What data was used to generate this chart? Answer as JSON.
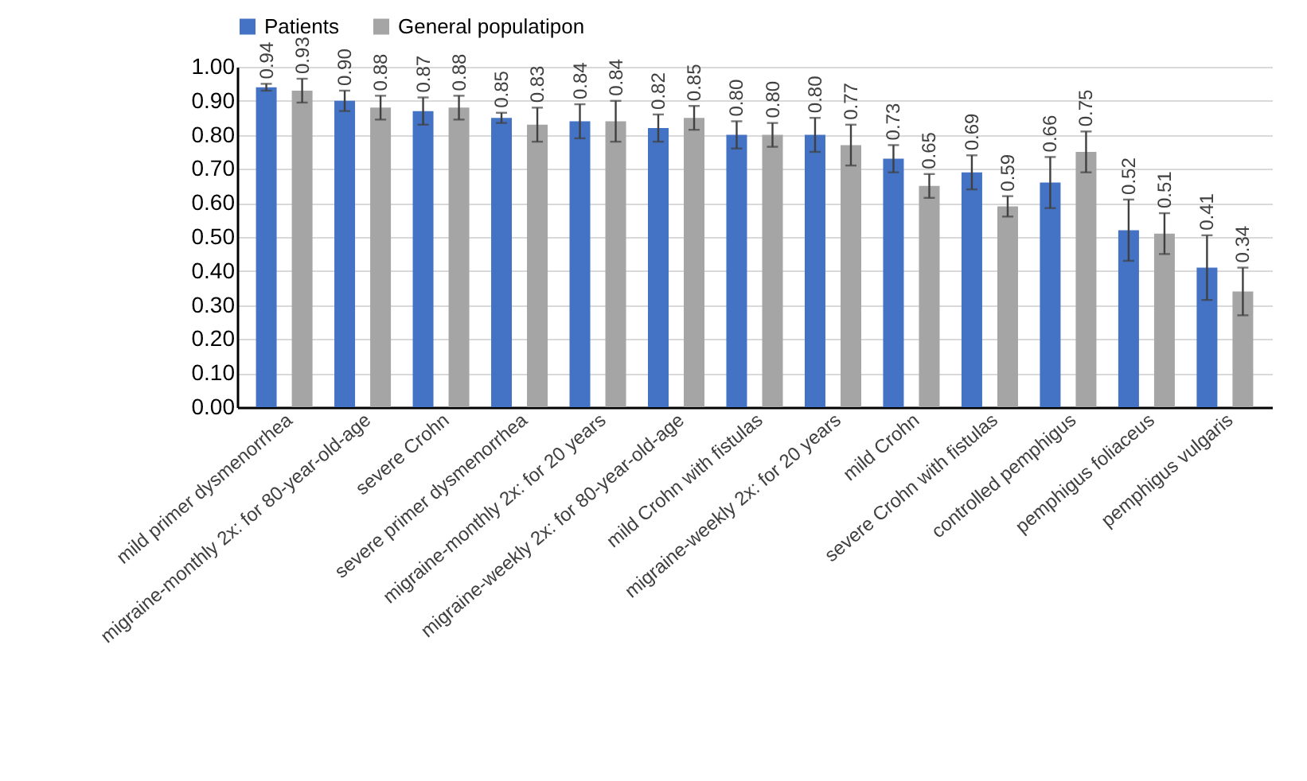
{
  "chart_data": {
    "type": "bar",
    "categories": [
      "mild primer dysmenorrhea",
      "migraine-monthly 2x: for 80-year-old-age",
      "severe Crohn",
      "severe primer dysmenorrhea",
      "migraine-monthly 2x: for 20 years",
      "migraine-weekly 2x: for 80-year-old-age",
      "mild Crohn with fistulas",
      "migraine-weekly 2x: for 20 years",
      "mild Crohn",
      "severe Crohn with fistulas",
      "controlled pemphigus",
      "pemphigus foliaceus",
      "pemphigus vulgaris"
    ],
    "series": [
      {
        "name": "Patients",
        "color": "#4472c4",
        "values": [
          0.94,
          0.9,
          0.87,
          0.85,
          0.84,
          0.82,
          0.8,
          0.8,
          0.73,
          0.69,
          0.66,
          0.52,
          0.41
        ],
        "errors": [
          0.01,
          0.03,
          0.04,
          0.015,
          0.05,
          0.04,
          0.04,
          0.05,
          0.04,
          0.05,
          0.075,
          0.09,
          0.095
        ],
        "value_labels": [
          "0.94",
          "0.90",
          "0.87",
          "0.85",
          "0.84",
          "0.82",
          "0.80",
          "0.80",
          "0.73",
          "0.69",
          "0.66",
          "0.52",
          "0.41"
        ]
      },
      {
        "name": "General populatipon",
        "color": "#a5a5a5",
        "values": [
          0.93,
          0.88,
          0.88,
          0.83,
          0.84,
          0.85,
          0.8,
          0.77,
          0.65,
          0.59,
          0.75,
          0.51,
          0.34
        ],
        "errors": [
          0.035,
          0.035,
          0.035,
          0.05,
          0.06,
          0.035,
          0.035,
          0.06,
          0.035,
          0.03,
          0.06,
          0.06,
          0.07
        ],
        "value_labels": [
          "0.93",
          "0.88",
          "0.88",
          "0.83",
          "0.84",
          "0.85",
          "0.80",
          "0.77",
          "0.65",
          "0.59",
          "0.75",
          "0.51",
          "0.34"
        ]
      }
    ],
    "ylim": [
      0,
      1
    ],
    "yticks": [
      {
        "value": 0,
        "label": "0.00"
      },
      {
        "value": 0.1,
        "label": "0.10"
      },
      {
        "value": 0.2,
        "label": "0.20"
      },
      {
        "value": 0.3,
        "label": "0.30"
      },
      {
        "value": 0.4,
        "label": "0.40"
      },
      {
        "value": 0.5,
        "label": "0.50"
      },
      {
        "value": 0.6,
        "label": "0.60"
      },
      {
        "value": 0.7,
        "label": "0.70"
      },
      {
        "value": 0.8,
        "label": "0.80"
      },
      {
        "value": 0.9,
        "label": "0.90"
      },
      {
        "value": 1,
        "label": "1.00"
      }
    ],
    "grid": "y",
    "legend": "top"
  }
}
